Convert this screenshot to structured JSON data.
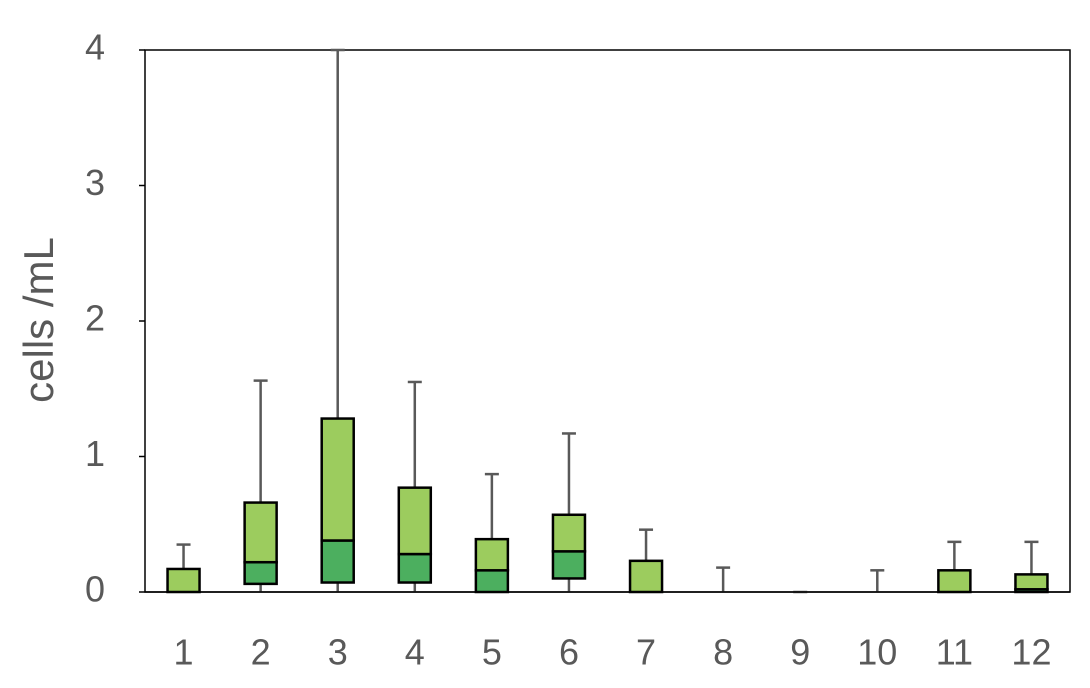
{
  "chart_data": {
    "type": "box",
    "y_label": "cells /mL",
    "categories": [
      "1",
      "2",
      "3",
      "4",
      "5",
      "6",
      "7",
      "8",
      "9",
      "10",
      "11",
      "12"
    ],
    "min": [
      0,
      0,
      0,
      0,
      0,
      0,
      0,
      0,
      0,
      0,
      0,
      0
    ],
    "q1": [
      0,
      0.06,
      0.07,
      0.07,
      0,
      0.1,
      0,
      0,
      0,
      0,
      0,
      0
    ],
    "median": [
      0,
      0.22,
      0.38,
      0.28,
      0.16,
      0.3,
      0,
      0,
      0,
      0,
      0,
      0.02
    ],
    "q3": [
      0.17,
      0.66,
      1.28,
      0.77,
      0.39,
      0.57,
      0.23,
      0,
      0,
      0,
      0.16,
      0.13
    ],
    "max": [
      0.35,
      1.56,
      4.0,
      1.55,
      0.87,
      1.17,
      0.46,
      0.18,
      0,
      0.16,
      0.37,
      0.37
    ],
    "lower_color": "#4caf5f",
    "upper_color": "#9ccc5e",
    "whisker_color": "#595959",
    "ylim": [
      0,
      4
    ],
    "yticks": [
      0,
      1,
      2,
      3,
      4
    ]
  }
}
